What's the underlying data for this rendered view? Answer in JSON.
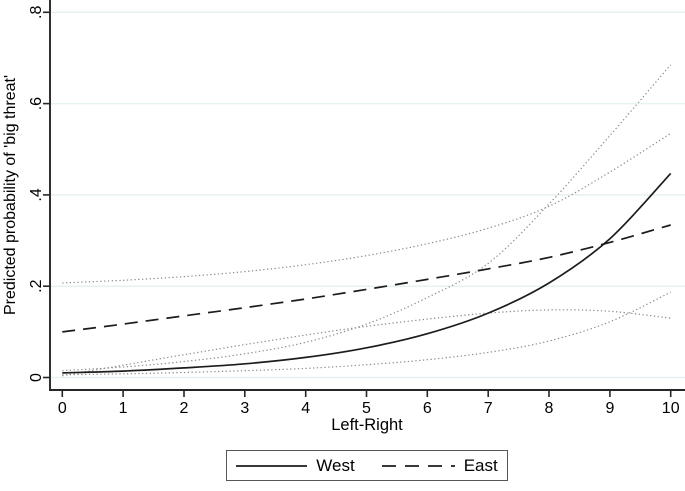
{
  "chart_data": {
    "type": "line",
    "title": "",
    "xlabel": "Left-Right",
    "ylabel": "Predicted probability of 'big threat'",
    "xlim": [
      0,
      10
    ],
    "ylim": [
      0,
      0.8
    ],
    "grid": "horizontal",
    "legend_position": "bottom-center",
    "x_ticks": [
      0,
      1,
      2,
      3,
      4,
      5,
      6,
      7,
      8,
      9,
      10
    ],
    "y_ticks": [
      {
        "value": 0.0,
        "label": "0"
      },
      {
        "value": 0.2,
        "label": ".2"
      },
      {
        "value": 0.4,
        "label": ".4"
      },
      {
        "value": 0.6,
        "label": ".6"
      },
      {
        "value": 0.8,
        "label": ".8"
      }
    ],
    "x": [
      0,
      1,
      2,
      3,
      4,
      5,
      6,
      7,
      8,
      9,
      10
    ],
    "series": [
      {
        "name": "West upper confidence band",
        "line": "dot",
        "color": "#8a8a8a",
        "width": 1.2,
        "in_legend": false,
        "values": [
          0.015,
          0.023,
          0.035,
          0.052,
          0.077,
          0.117,
          0.175,
          0.25,
          0.38,
          0.53,
          0.685
        ]
      },
      {
        "name": "West lower confidence band",
        "line": "dot",
        "color": "#8a8a8a",
        "width": 1.2,
        "in_legend": false,
        "values": [
          0.006,
          0.008,
          0.011,
          0.015,
          0.02,
          0.028,
          0.039,
          0.055,
          0.08,
          0.122,
          0.187
        ]
      },
      {
        "name": "East upper confidence band",
        "line": "dot",
        "color": "#8a8a8a",
        "width": 1.2,
        "in_legend": false,
        "values": [
          0.207,
          0.213,
          0.221,
          0.232,
          0.247,
          0.267,
          0.293,
          0.327,
          0.375,
          0.45,
          0.535
        ]
      },
      {
        "name": "East lower confidence band",
        "line": "dot",
        "color": "#8a8a8a",
        "width": 1.2,
        "in_legend": false,
        "values": [
          0.004,
          0.027,
          0.05,
          0.072,
          0.093,
          0.112,
          0.128,
          0.141,
          0.148,
          0.145,
          0.13
        ]
      },
      {
        "name": "East",
        "line": "dash",
        "color": "#1c1c1c",
        "width": 1.7,
        "in_legend": true,
        "values": [
          0.1,
          0.117,
          0.135,
          0.153,
          0.172,
          0.193,
          0.215,
          0.238,
          0.263,
          0.296,
          0.334
        ]
      },
      {
        "name": "West",
        "line": "solid",
        "color": "#1c1c1c",
        "width": 1.7,
        "in_legend": true,
        "values": [
          0.01,
          0.014,
          0.021,
          0.03,
          0.044,
          0.065,
          0.096,
          0.141,
          0.207,
          0.304,
          0.447
        ]
      }
    ],
    "legend": [
      {
        "label": "West",
        "line": "solid"
      },
      {
        "label": "East",
        "line": "dash"
      }
    ],
    "colors": {
      "background": "#ffffff",
      "axis": "#262626",
      "gridline": "#e8f1f1",
      "main_line": "#1c1c1c",
      "confidence_band": "#8a8a8a",
      "legend_border": "#565656"
    }
  }
}
